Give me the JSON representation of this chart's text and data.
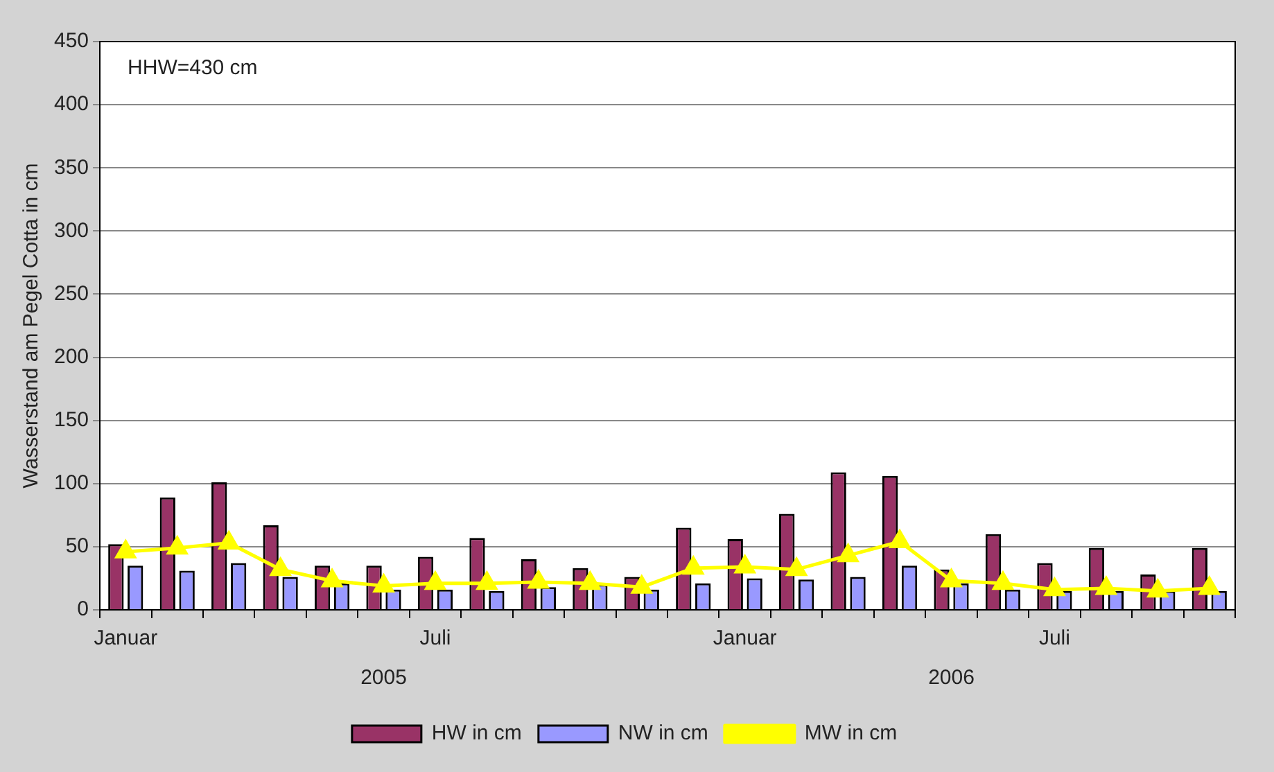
{
  "chart_data": {
    "type": "bar",
    "ylabel": "Wasserstand am Pegel Cotta in cm",
    "annotations": [
      "HHW=430 cm",
      "2005",
      "2006"
    ],
    "categories": [
      "Januar",
      null,
      null,
      null,
      null,
      null,
      "Juli",
      null,
      null,
      null,
      null,
      null,
      "Januar",
      null,
      null,
      null,
      null,
      null,
      "Juli",
      null,
      null,
      null
    ],
    "series": [
      {
        "name": "HW in cm",
        "color": "#993366",
        "values": [
          52,
          89,
          101,
          67,
          35,
          35,
          42,
          57,
          40,
          33,
          26,
          65,
          56,
          76,
          109,
          106,
          32,
          60,
          37,
          49,
          28,
          49
        ]
      },
      {
        "name": "NW in cm",
        "color": "#9999ff",
        "values": [
          35,
          31,
          37,
          26,
          21,
          16,
          16,
          15,
          18,
          20,
          16,
          21,
          25,
          24,
          26,
          35,
          21,
          16,
          15,
          15,
          15,
          15
        ]
      },
      {
        "name": "MW in cm",
        "type": "line",
        "color": "#ffff00",
        "marker": "triangle",
        "values": [
          46,
          49,
          53,
          32,
          23,
          19,
          21,
          21,
          22,
          21,
          18,
          33,
          34,
          32,
          43,
          54,
          23,
          21,
          16,
          17,
          15,
          17
        ]
      }
    ],
    "ylim": [
      0,
      450
    ],
    "yticks": [
      0,
      50,
      100,
      150,
      200,
      250,
      300,
      350,
      400,
      450
    ],
    "grid": "y",
    "legend": "bottom"
  }
}
